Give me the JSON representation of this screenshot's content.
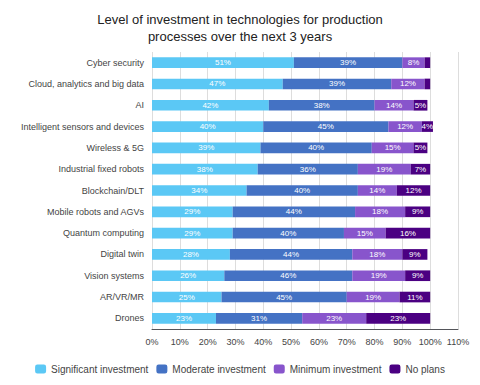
{
  "chart_data": {
    "type": "bar",
    "orientation": "horizontal",
    "stacked": true,
    "data_labels": true,
    "grid": true,
    "legend": "bottom",
    "title": "Level of investment in technologies for production\nprocesses over the next 3 years",
    "categories": [
      "Cyber security",
      "Cloud, analytics and big data",
      "AI",
      "Intelligent sensors and devices",
      "Wireless & 5G",
      "Industrial fixed robots",
      "Blockchain/DLT",
      "Mobile robots and AGVs",
      "Quantum computing",
      "Digital twin",
      "Vision systems",
      "AR/VR/MR",
      "Drones"
    ],
    "xlim": [
      0,
      110
    ],
    "xticks": [
      {
        "value": 0,
        "label": "0%"
      },
      {
        "value": 10,
        "label": "10%"
      },
      {
        "value": 20,
        "label": "20%"
      },
      {
        "value": 30,
        "label": "30%"
      },
      {
        "value": 40,
        "label": "40%"
      },
      {
        "value": 50,
        "label": "50%"
      },
      {
        "value": 60,
        "label": "60%"
      },
      {
        "value": 70,
        "label": "70%"
      },
      {
        "value": 80,
        "label": "80%"
      },
      {
        "value": 90,
        "label": "90%"
      },
      {
        "value": 100,
        "label": "100%"
      },
      {
        "value": 110,
        "label": "110%"
      }
    ],
    "series": [
      {
        "name": "Significant investment",
        "color": "#5BC8F5",
        "values": [
          51,
          47,
          42,
          40,
          39,
          38,
          34,
          29,
          29,
          28,
          26,
          25,
          23
        ],
        "value_labels": [
          "51%",
          "47%",
          "42%",
          "40%",
          "39%",
          "38%",
          "34%",
          "29%",
          "29%",
          "28%",
          "26%",
          "25%",
          "23%"
        ]
      },
      {
        "name": "Moderate investment",
        "color": "#4472C4",
        "values": [
          39,
          39,
          38,
          45,
          40,
          36,
          40,
          44,
          40,
          44,
          46,
          45,
          31
        ],
        "value_labels": [
          "39%",
          "39%",
          "38%",
          "45%",
          "40%",
          "36%",
          "40%",
          "44%",
          "40%",
          "44%",
          "46%",
          "45%",
          "31%"
        ]
      },
      {
        "name": "Minimum investment",
        "color": "#8855CC",
        "values": [
          8,
          12,
          14,
          12,
          15,
          19,
          14,
          18,
          15,
          18,
          19,
          19,
          23
        ],
        "value_labels": [
          "8%",
          "12%",
          "14%",
          "12%",
          "15%",
          "19%",
          "14%",
          "18%",
          "15%",
          "18%",
          "19%",
          "19%",
          "23%"
        ]
      },
      {
        "name": "No plans",
        "color": "#4B0082",
        "values": [
          2,
          2,
          5,
          4,
          5,
          7,
          12,
          9,
          16,
          9,
          9,
          11,
          23
        ],
        "value_labels": [
          null,
          null,
          "5%",
          "4%",
          "5%",
          "7%",
          "12%",
          "9%",
          "16%",
          "9%",
          "9%",
          "11%",
          "23%"
        ]
      }
    ]
  }
}
